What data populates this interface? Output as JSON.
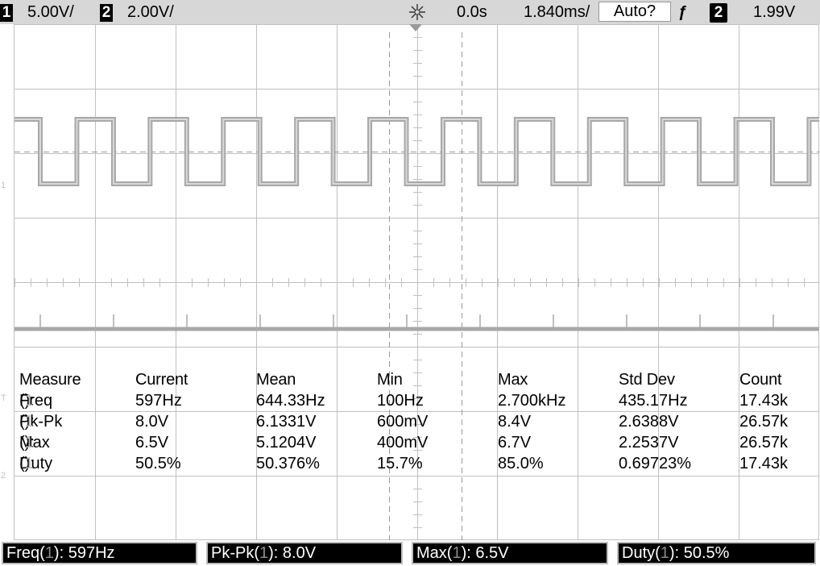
{
  "topbar": {
    "ch1_num": "1",
    "ch1_scale": "5.00V/",
    "ch2_num": "2",
    "ch2_scale": "2.00V/",
    "run_icon": "run-sparkle-icon",
    "time_delay": "0.0s",
    "time_scale": "1.840ms/",
    "trigger_mode": "Auto?",
    "trigger_slope_icon": "rising-edge-icon",
    "trigger_source": "2",
    "trigger_level": "1.99V"
  },
  "measurements": {
    "headers": [
      "Measure",
      "Current",
      "Mean",
      "Min",
      "Max",
      "Std Dev",
      "Count"
    ],
    "rows": [
      {
        "name": "Freq",
        "source": "1",
        "values": [
          "597Hz",
          "644.33Hz",
          "100Hz",
          "2.700kHz",
          "435.17Hz",
          "17.43k"
        ]
      },
      {
        "name": "Pk-Pk",
        "source": "1",
        "values": [
          "8.0V",
          "6.1331V",
          "600mV",
          "8.4V",
          "2.6388V",
          "26.57k"
        ]
      },
      {
        "name": "Max",
        "source": "1",
        "values": [
          "6.5V",
          "5.1204V",
          "400mV",
          "6.7V",
          "2.2537V",
          "26.57k"
        ]
      },
      {
        "name": "Duty",
        "source": "1",
        "values": [
          "50.5%",
          "50.376%",
          "15.7%",
          "85.0%",
          "0.69723%",
          "17.43k"
        ]
      }
    ]
  },
  "softkeys": [
    {
      "name": "Freq",
      "source": "1",
      "value": "597Hz"
    },
    {
      "name": "Pk-Pk",
      "source": "1",
      "value": "8.0V"
    },
    {
      "name": "Max",
      "source": "1",
      "value": "6.5V"
    },
    {
      "name": "Duty",
      "source": "1",
      "value": "50.5%"
    }
  ],
  "colors": {
    "grid": "#c0c0c0",
    "trace": "#a8a8a8",
    "background": "#ffffff",
    "statusbar": "#d7d7d7"
  }
}
